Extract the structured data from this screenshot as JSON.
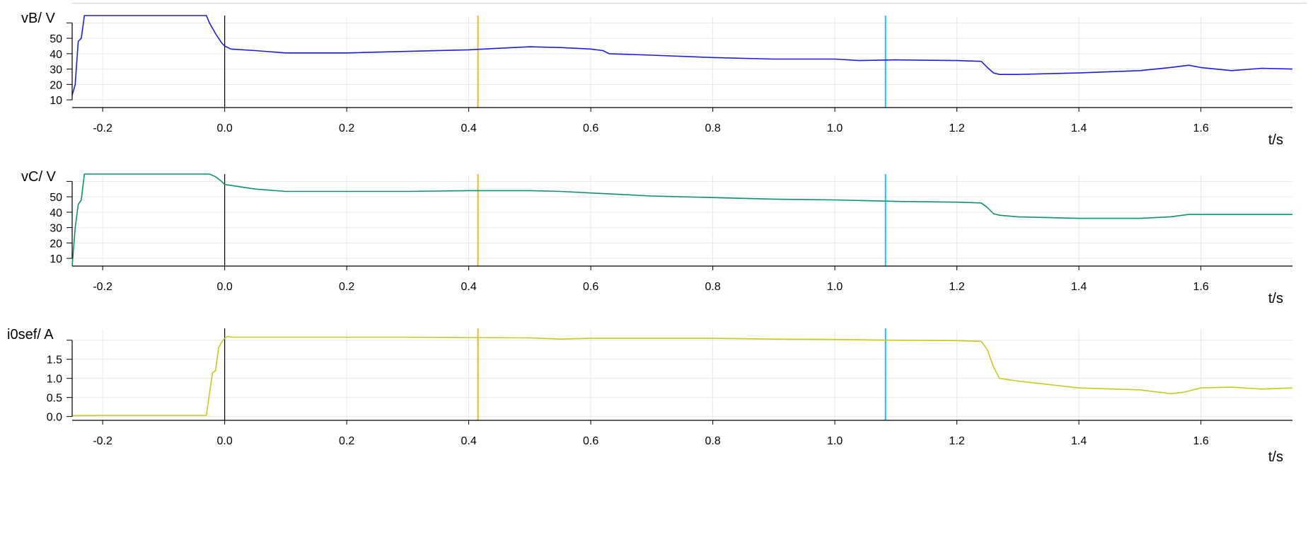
{
  "colors": {
    "grid": "#e6e6e6",
    "axis": "#000000",
    "cursor_a": "#f0b400",
    "cursor_b": "#00bfff",
    "zero_line": "#000000"
  },
  "cursors": {
    "a": 0.415,
    "b": 1.083
  },
  "chart_data": [
    {
      "type": "line",
      "ylabel": "vB/ V",
      "xlabel": "t/s",
      "xlim": [
        -0.25,
        1.75
      ],
      "ylim": [
        5,
        62
      ],
      "x_ticks": [
        -0.2,
        0.0,
        0.2,
        0.4,
        0.6,
        0.8,
        1.0,
        1.2,
        1.4,
        1.6
      ],
      "x_tick_labels": [
        "-0.2",
        "0.0",
        "0.2",
        "0.4",
        "0.6",
        "0.8",
        "1.0",
        "1.2",
        "1.4",
        "1.6"
      ],
      "y_ticks": [
        10,
        20,
        30,
        40,
        50,
        60
      ],
      "y_tick_labels": [
        "10",
        "20",
        "30",
        "40",
        "50",
        ""
      ],
      "grid": true,
      "series": [
        {
          "color": "#1c1ce0",
          "x": [
            -0.25,
            -0.245,
            -0.24,
            -0.235,
            -0.23,
            -0.225,
            -0.2,
            -0.1,
            -0.03,
            -0.025,
            -0.015,
            -0.005,
            0.0,
            0.01,
            0.05,
            0.1,
            0.2,
            0.3,
            0.4,
            0.45,
            0.5,
            0.55,
            0.6,
            0.62,
            0.63,
            0.7,
            0.8,
            0.9,
            1.0,
            1.04,
            1.1,
            1.2,
            1.24,
            1.25,
            1.26,
            1.27,
            1.3,
            1.4,
            1.5,
            1.55,
            1.58,
            1.6,
            1.65,
            1.7,
            1.75
          ],
          "y": [
            13,
            20,
            48,
            50,
            65,
            66,
            66,
            66,
            66,
            60,
            53,
            47,
            45,
            43,
            42,
            40.5,
            40.5,
            41.5,
            42.5,
            43.5,
            44.5,
            44,
            43,
            42,
            40,
            39,
            37.5,
            36.5,
            36.5,
            35.5,
            36,
            35.5,
            35,
            31,
            27.5,
            26.5,
            26.5,
            27.5,
            29,
            31,
            32.5,
            31,
            29,
            30.5,
            30
          ]
        }
      ]
    },
    {
      "type": "line",
      "ylabel": "vC/ V",
      "xlabel": "t/s",
      "xlim": [
        -0.25,
        1.75
      ],
      "ylim": [
        5,
        62
      ],
      "x_ticks": [
        -0.2,
        0.0,
        0.2,
        0.4,
        0.6,
        0.8,
        1.0,
        1.2,
        1.4,
        1.6
      ],
      "x_tick_labels": [
        "-0.2",
        "0.0",
        "0.2",
        "0.4",
        "0.6",
        "0.8",
        "1.0",
        "1.2",
        "1.4",
        "1.6"
      ],
      "y_ticks": [
        10,
        20,
        30,
        40,
        50,
        60
      ],
      "y_tick_labels": [
        "10",
        "20",
        "30",
        "40",
        "50",
        ""
      ],
      "grid": true,
      "series": [
        {
          "color": "#0a9270",
          "x": [
            -0.25,
            -0.245,
            -0.24,
            -0.235,
            -0.23,
            -0.225,
            -0.2,
            -0.1,
            -0.025,
            -0.015,
            -0.005,
            0.0,
            0.05,
            0.1,
            0.2,
            0.3,
            0.4,
            0.5,
            0.55,
            0.6,
            0.7,
            0.8,
            0.9,
            1.0,
            1.1,
            1.2,
            1.24,
            1.25,
            1.26,
            1.27,
            1.3,
            1.4,
            1.5,
            1.55,
            1.58,
            1.6,
            1.7,
            1.75
          ],
          "y": [
            5,
            30,
            45,
            48,
            66,
            66,
            66,
            66,
            66,
            63,
            60,
            58,
            55,
            53.5,
            53.5,
            53.5,
            54,
            54,
            53.5,
            52.5,
            50.5,
            49.5,
            48.5,
            48,
            47,
            46.5,
            46,
            43,
            39,
            38,
            37,
            36,
            36,
            37,
            38.5,
            38.5,
            38.5,
            38.5
          ]
        }
      ]
    },
    {
      "type": "line",
      "ylabel": "i0sef/ A",
      "xlabel": "t/s",
      "xlim": [
        -0.25,
        1.75
      ],
      "ylim": [
        -0.1,
        2.2
      ],
      "x_ticks": [
        -0.2,
        0.0,
        0.2,
        0.4,
        0.6,
        0.8,
        1.0,
        1.2,
        1.4,
        1.6
      ],
      "x_tick_labels": [
        "-0.2",
        "0.0",
        "0.2",
        "0.4",
        "0.6",
        "0.8",
        "1.0",
        "1.2",
        "1.4",
        "1.6"
      ],
      "y_ticks": [
        0.0,
        0.5,
        1.0,
        1.5,
        2.0
      ],
      "y_tick_labels": [
        "0.0",
        "0.5",
        "1.0",
        "1.5",
        ""
      ],
      "grid": true,
      "series": [
        {
          "color": "#c8c81e",
          "x": [
            -0.25,
            -0.2,
            -0.1,
            -0.03,
            -0.025,
            -0.02,
            -0.015,
            -0.01,
            -0.005,
            0.0,
            0.005,
            0.01,
            0.1,
            0.2,
            0.3,
            0.4,
            0.5,
            0.55,
            0.6,
            0.7,
            0.8,
            0.9,
            1.0,
            1.1,
            1.2,
            1.24,
            1.25,
            1.26,
            1.27,
            1.3,
            1.4,
            1.5,
            1.55,
            1.57,
            1.6,
            1.65,
            1.7,
            1.75
          ],
          "y": [
            0.02,
            0.03,
            0.03,
            0.03,
            0.6,
            1.15,
            1.2,
            1.8,
            1.95,
            2.05,
            2.1,
            2.08,
            2.08,
            2.08,
            2.08,
            2.07,
            2.06,
            2.03,
            2.05,
            2.05,
            2.05,
            2.03,
            2.02,
            2.0,
            1.99,
            1.97,
            1.75,
            1.3,
            1.0,
            0.93,
            0.75,
            0.7,
            0.6,
            0.63,
            0.75,
            0.77,
            0.72,
            0.75
          ]
        }
      ]
    }
  ]
}
